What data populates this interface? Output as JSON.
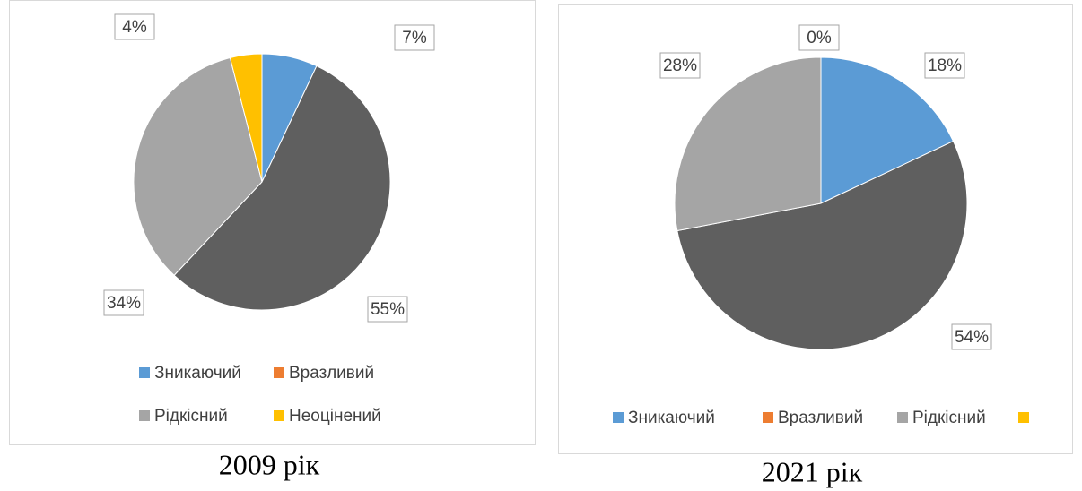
{
  "chart_data": [
    {
      "type": "pie",
      "caption": "2009 рік",
      "categories": [
        "Зникаючий",
        "Вразливий",
        "Рідкісний",
        "Неоцінений"
      ],
      "values": [
        7,
        55,
        34,
        4
      ],
      "value_labels": [
        "7%",
        "55%",
        "34%",
        "4%"
      ],
      "colors": [
        "#5b9bd5",
        "#5f5f5f",
        "#a5a5a5",
        "#ffc000"
      ],
      "legend_colors": [
        "#5b9bd5",
        "#ed7d31",
        "#a5a5a5",
        "#ffc000"
      ]
    },
    {
      "type": "pie",
      "caption": "2021 рік",
      "categories": [
        "Зникаючий",
        "Вразливий",
        "Рідкісний",
        null
      ],
      "values": [
        18,
        54,
        28,
        0
      ],
      "value_labels": [
        "18%",
        "54%",
        "28%",
        "0%"
      ],
      "colors": [
        "#5b9bd5",
        "#5f5f5f",
        "#a5a5a5",
        "#ffc000"
      ],
      "legend_colors": [
        "#5b9bd5",
        "#ed7d31",
        "#a5a5a5",
        "#ffc000"
      ]
    }
  ]
}
